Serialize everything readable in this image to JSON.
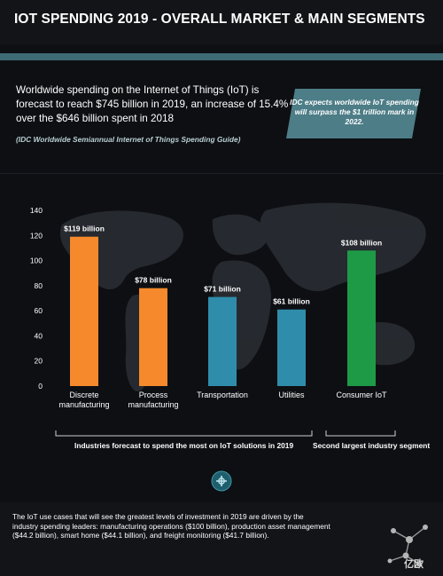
{
  "header": {
    "title": "IOT SPENDING 2019 - OVERALL MARKET & MAIN SEGMENTS"
  },
  "intro": {
    "text": "Worldwide spending on the Internet of Things (IoT) is forecast to reach $745 billion in 2019, an increase of 15.4% over the $646 billion spent in 2018",
    "source": "(IDC Worldwide Semiannual Internet of Things Spending Guide)"
  },
  "callout": {
    "text": "IDC expects worldwide IoT spending will surpass the $1 trillion mark in 2022."
  },
  "chart_data": {
    "type": "bar",
    "categories": [
      "Discrete manufacturing",
      "Process manufacturing",
      "Transportation",
      "Utilities",
      "Consumer IoT"
    ],
    "category_lines": [
      [
        "Discrete",
        "manufacturing"
      ],
      [
        "Process",
        "manufacturing"
      ],
      [
        "Transportation"
      ],
      [
        "Utilities"
      ],
      [
        "Consumer IoT"
      ]
    ],
    "values": [
      119,
      78,
      71,
      61,
      108
    ],
    "value_labels": [
      "$119 billion",
      "$78 billion",
      "$71 billion",
      "$61 billion",
      "$108 billion"
    ],
    "colors": [
      "#f5892b",
      "#f5892b",
      "#2f8dab",
      "#2f8dab",
      "#1e9a46"
    ],
    "yticks": [
      0,
      20,
      40,
      60,
      80,
      100,
      120,
      140
    ],
    "ylim": [
      0,
      140
    ],
    "grid": false,
    "title": "",
    "xlabel": "",
    "ylabel": ""
  },
  "brackets": {
    "industries": "Industries forecast to spend the most on IoT solutions in 2019",
    "second": "Second largest industry segment"
  },
  "footer": {
    "text": "The IoT use cases that will see the greatest levels of investment in 2019 are driven by the industry spending leaders: manufacturing operations ($100 billion), production asset management ($44.2 billion), smart home ($44.1 billion), and freight monitoring ($41.7 billion).",
    "watermark": "亿欧"
  },
  "colors": {
    "background": "#0d0f13",
    "teal_band": "#3e6a74",
    "callout_bg": "#4d7d87",
    "orange": "#f5892b",
    "blue": "#2f8dab",
    "green": "#1e9a46"
  },
  "icons": {
    "divider": "iot-circle-icon",
    "logo": "network-molecule-icon"
  }
}
